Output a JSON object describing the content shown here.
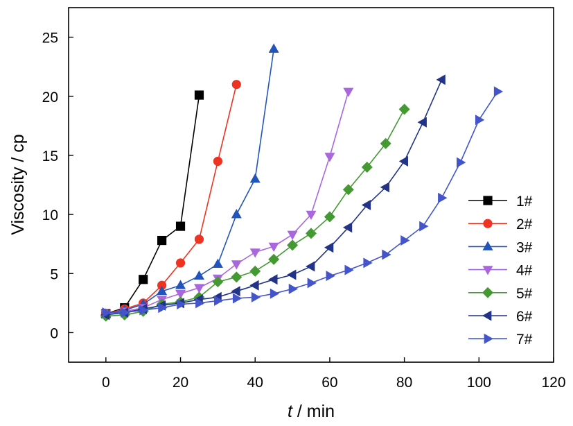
{
  "chart_data": {
    "type": "line",
    "title": "",
    "xlabel": {
      "var": "t",
      "unit": " / min"
    },
    "ylabel": "Viscosity / cp",
    "xlim": [
      -10,
      120
    ],
    "ylim": [
      -2.5,
      27.5
    ],
    "xticks": [
      0,
      20,
      40,
      60,
      80,
      100,
      120
    ],
    "yticks": [
      0,
      5,
      10,
      15,
      20,
      25
    ],
    "grid": false,
    "legend_position": "right",
    "series": [
      {
        "name": "1#",
        "color": "#000000",
        "marker": "square",
        "x": [
          0,
          5,
          10,
          15,
          20,
          25
        ],
        "y": [
          1.6,
          2.1,
          4.5,
          7.8,
          9.0,
          20.1
        ]
      },
      {
        "name": "2#",
        "color": "#ee3322",
        "marker": "circle",
        "x": [
          0,
          5,
          10,
          15,
          20,
          25,
          30,
          35
        ],
        "y": [
          1.6,
          2.0,
          2.5,
          4.0,
          5.9,
          7.9,
          14.5,
          21.0
        ]
      },
      {
        "name": "3#",
        "color": "#2255bb",
        "marker": "triangle-up",
        "x": [
          0,
          5,
          10,
          15,
          20,
          25,
          30,
          35,
          40,
          45
        ],
        "y": [
          1.6,
          1.9,
          2.4,
          3.5,
          4.0,
          4.8,
          5.8,
          10.0,
          13.0,
          24.0
        ]
      },
      {
        "name": "4#",
        "color": "#aa66dd",
        "marker": "triangle-down",
        "x": [
          0,
          5,
          10,
          15,
          20,
          25,
          30,
          35,
          40,
          45,
          50,
          55,
          60,
          65
        ],
        "y": [
          1.6,
          1.8,
          2.1,
          2.8,
          3.3,
          3.8,
          4.6,
          5.8,
          6.8,
          7.3,
          8.3,
          10.0,
          14.9,
          20.4
        ]
      },
      {
        "name": "5#",
        "color": "#449933",
        "marker": "diamond",
        "x": [
          0,
          5,
          10,
          15,
          20,
          25,
          30,
          35,
          40,
          45,
          50,
          55,
          60,
          65,
          70,
          75,
          80
        ],
        "y": [
          1.4,
          1.5,
          1.8,
          2.4,
          2.6,
          3.0,
          4.3,
          4.7,
          5.2,
          6.2,
          7.4,
          8.4,
          9.8,
          12.1,
          14.0,
          16.0,
          18.9
        ]
      },
      {
        "name": "6#",
        "color": "#223388",
        "marker": "triangle-left",
        "x": [
          0,
          5,
          10,
          15,
          20,
          25,
          30,
          35,
          40,
          45,
          50,
          55,
          60,
          65,
          70,
          75,
          80,
          85,
          90
        ],
        "y": [
          1.5,
          1.7,
          2.0,
          2.3,
          2.5,
          2.8,
          3.0,
          3.5,
          4.0,
          4.5,
          4.9,
          5.6,
          7.2,
          8.9,
          10.8,
          12.3,
          14.5,
          17.8,
          21.4
        ]
      },
      {
        "name": "7#",
        "color": "#4455cc",
        "marker": "triangle-right",
        "x": [
          0,
          5,
          10,
          15,
          20,
          25,
          30,
          35,
          40,
          45,
          50,
          55,
          60,
          65,
          70,
          75,
          80,
          85,
          90,
          95,
          100,
          105
        ],
        "y": [
          1.7,
          1.7,
          1.9,
          2.1,
          2.4,
          2.5,
          2.7,
          2.9,
          3.0,
          3.3,
          3.7,
          4.2,
          4.8,
          5.3,
          5.9,
          6.6,
          7.8,
          9.0,
          11.4,
          14.4,
          18.0,
          20.4
        ]
      }
    ]
  }
}
